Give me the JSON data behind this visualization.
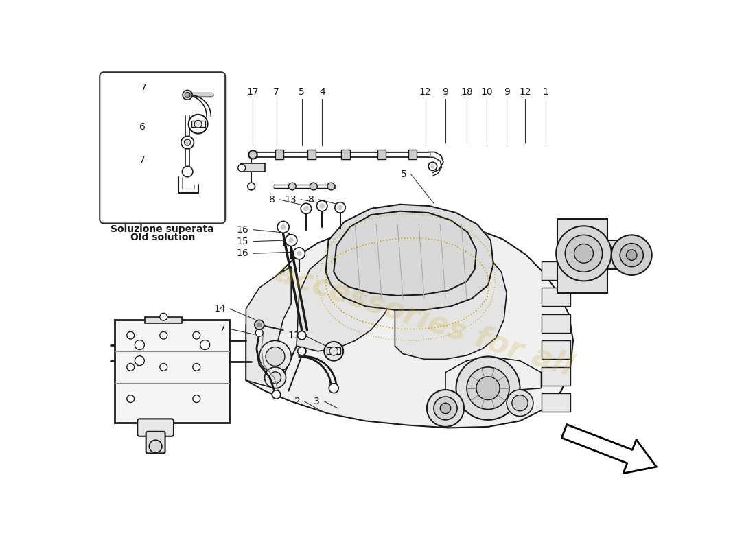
{
  "bg_color": "#ffffff",
  "line_color": "#1a1a1a",
  "label_color": "#1a1a1a",
  "watermark_color_1": "#d4b44a",
  "watermark_color_2": "#c8963c",
  "inset_label_line1": "Soluzione superata",
  "inset_label_line2": "Old solution",
  "fig_w": 11.0,
  "fig_h": 8.0,
  "dpi": 100
}
